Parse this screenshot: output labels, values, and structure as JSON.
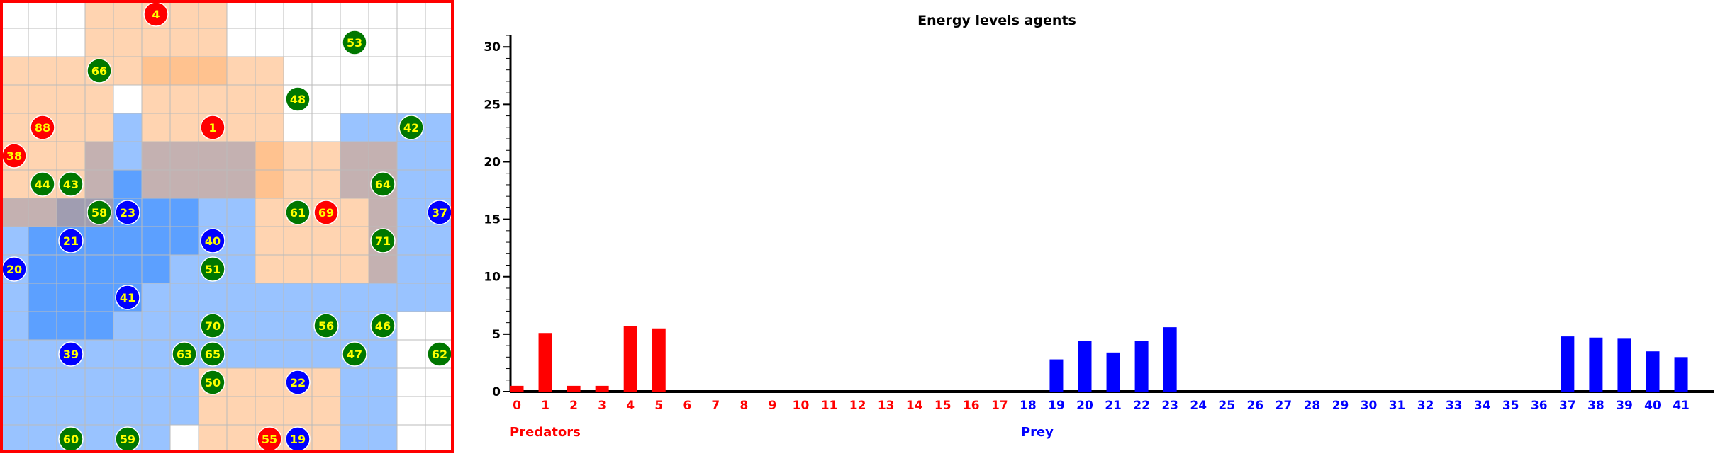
{
  "grid": {
    "rows": 16,
    "cols": 16,
    "red_territory_cells": [
      [
        0,
        3
      ],
      [
        0,
        4
      ],
      [
        0,
        5
      ],
      [
        0,
        6
      ],
      [
        0,
        7
      ],
      [
        1,
        3
      ],
      [
        1,
        4
      ],
      [
        1,
        5
      ],
      [
        1,
        6
      ],
      [
        1,
        7
      ],
      [
        2,
        0
      ],
      [
        2,
        1
      ],
      [
        2,
        2
      ],
      [
        2,
        3
      ],
      [
        2,
        4
      ],
      [
        2,
        5
      ],
      [
        2,
        6
      ],
      [
        2,
        7
      ],
      [
        2,
        8
      ],
      [
        2,
        9
      ],
      [
        3,
        0
      ],
      [
        3,
        1
      ],
      [
        3,
        2
      ],
      [
        3,
        3
      ],
      [
        3,
        5
      ],
      [
        3,
        6
      ],
      [
        3,
        7
      ],
      [
        3,
        8
      ],
      [
        3,
        9
      ],
      [
        4,
        0
      ],
      [
        4,
        1
      ],
      [
        4,
        2
      ],
      [
        4,
        3
      ],
      [
        4,
        5
      ],
      [
        4,
        6
      ],
      [
        4,
        7
      ],
      [
        4,
        8
      ],
      [
        4,
        9
      ],
      [
        5,
        0
      ],
      [
        5,
        1
      ],
      [
        5,
        2
      ],
      [
        5,
        3
      ],
      [
        5,
        5
      ],
      [
        5,
        6
      ],
      [
        5,
        7
      ],
      [
        5,
        8
      ],
      [
        5,
        9
      ],
      [
        5,
        10
      ],
      [
        5,
        11
      ],
      [
        5,
        12
      ],
      [
        5,
        13
      ],
      [
        6,
        0
      ],
      [
        6,
        1
      ],
      [
        6,
        2
      ],
      [
        6,
        3
      ],
      [
        6,
        5
      ],
      [
        6,
        6
      ],
      [
        6,
        7
      ],
      [
        6,
        8
      ],
      [
        6,
        9
      ],
      [
        6,
        10
      ],
      [
        6,
        11
      ],
      [
        6,
        12
      ],
      [
        6,
        13
      ],
      [
        7,
        0
      ],
      [
        7,
        1
      ],
      [
        7,
        2
      ],
      [
        7,
        3
      ],
      [
        7,
        9
      ],
      [
        7,
        10
      ],
      [
        7,
        11
      ],
      [
        7,
        12
      ],
      [
        7,
        13
      ],
      [
        8,
        9
      ],
      [
        8,
        10
      ],
      [
        8,
        11
      ],
      [
        8,
        12
      ],
      [
        8,
        13
      ],
      [
        9,
        9
      ],
      [
        9,
        10
      ],
      [
        9,
        11
      ],
      [
        9,
        12
      ],
      [
        9,
        13
      ],
      [
        13,
        7
      ],
      [
        13,
        8
      ],
      [
        13,
        9
      ],
      [
        13,
        10
      ],
      [
        13,
        11
      ],
      [
        14,
        7
      ],
      [
        14,
        8
      ],
      [
        14,
        9
      ],
      [
        14,
        10
      ],
      [
        14,
        11
      ],
      [
        15,
        7
      ],
      [
        15,
        8
      ],
      [
        15,
        9
      ],
      [
        15,
        10
      ],
      [
        15,
        11
      ]
    ],
    "red_strong_cells": [
      [
        2,
        5
      ],
      [
        2,
        6
      ],
      [
        2,
        7
      ],
      [
        5,
        9
      ],
      [
        6,
        9
      ]
    ],
    "blue_territory_cells": [
      [
        4,
        4
      ],
      [
        4,
        12
      ],
      [
        4,
        13
      ],
      [
        4,
        14
      ],
      [
        4,
        15
      ],
      [
        5,
        3
      ],
      [
        5,
        4
      ],
      [
        5,
        5
      ],
      [
        5,
        6
      ],
      [
        5,
        7
      ],
      [
        5,
        8
      ],
      [
        5,
        12
      ],
      [
        5,
        13
      ],
      [
        5,
        14
      ],
      [
        5,
        15
      ],
      [
        6,
        3
      ],
      [
        6,
        4
      ],
      [
        6,
        5
      ],
      [
        6,
        6
      ],
      [
        6,
        7
      ],
      [
        6,
        8
      ],
      [
        6,
        12
      ],
      [
        6,
        13
      ],
      [
        6,
        14
      ],
      [
        6,
        15
      ],
      [
        7,
        0
      ],
      [
        7,
        1
      ],
      [
        7,
        2
      ],
      [
        7,
        3
      ],
      [
        7,
        4
      ],
      [
        7,
        5
      ],
      [
        7,
        6
      ],
      [
        7,
        7
      ],
      [
        7,
        8
      ],
      [
        7,
        13
      ],
      [
        7,
        14
      ],
      [
        7,
        15
      ],
      [
        8,
        0
      ],
      [
        8,
        1
      ],
      [
        8,
        2
      ],
      [
        8,
        3
      ],
      [
        8,
        4
      ],
      [
        8,
        5
      ],
      [
        8,
        6
      ],
      [
        8,
        7
      ],
      [
        8,
        8
      ],
      [
        8,
        13
      ],
      [
        8,
        14
      ],
      [
        8,
        15
      ],
      [
        9,
        0
      ],
      [
        9,
        1
      ],
      [
        9,
        2
      ],
      [
        9,
        3
      ],
      [
        9,
        4
      ],
      [
        9,
        5
      ],
      [
        9,
        6
      ],
      [
        9,
        7
      ],
      [
        9,
        8
      ],
      [
        9,
        13
      ],
      [
        9,
        14
      ],
      [
        9,
        15
      ],
      [
        10,
        0
      ],
      [
        10,
        1
      ],
      [
        10,
        2
      ],
      [
        10,
        3
      ],
      [
        10,
        4
      ],
      [
        10,
        5
      ],
      [
        10,
        6
      ],
      [
        10,
        7
      ],
      [
        10,
        8
      ],
      [
        10,
        9
      ],
      [
        10,
        10
      ],
      [
        10,
        11
      ],
      [
        10,
        12
      ],
      [
        10,
        13
      ],
      [
        10,
        14
      ],
      [
        10,
        15
      ],
      [
        11,
        0
      ],
      [
        11,
        1
      ],
      [
        11,
        2
      ],
      [
        11,
        3
      ],
      [
        11,
        4
      ],
      [
        11,
        5
      ],
      [
        11,
        6
      ],
      [
        11,
        7
      ],
      [
        11,
        8
      ],
      [
        11,
        9
      ],
      [
        11,
        10
      ],
      [
        11,
        11
      ],
      [
        11,
        12
      ],
      [
        11,
        13
      ],
      [
        12,
        0
      ],
      [
        12,
        1
      ],
      [
        12,
        2
      ],
      [
        12,
        3
      ],
      [
        12,
        4
      ],
      [
        12,
        5
      ],
      [
        12,
        6
      ],
      [
        12,
        7
      ],
      [
        12,
        8
      ],
      [
        12,
        9
      ],
      [
        12,
        10
      ],
      [
        12,
        11
      ],
      [
        12,
        12
      ],
      [
        12,
        13
      ],
      [
        13,
        0
      ],
      [
        13,
        1
      ],
      [
        13,
        2
      ],
      [
        13,
        3
      ],
      [
        13,
        4
      ],
      [
        13,
        5
      ],
      [
        13,
        6
      ],
      [
        13,
        12
      ],
      [
        13,
        13
      ],
      [
        14,
        0
      ],
      [
        14,
        1
      ],
      [
        14,
        2
      ],
      [
        14,
        3
      ],
      [
        14,
        4
      ],
      [
        14,
        5
      ],
      [
        14,
        6
      ],
      [
        14,
        12
      ],
      [
        14,
        13
      ],
      [
        15,
        0
      ],
      [
        15,
        1
      ],
      [
        15,
        2
      ],
      [
        15,
        3
      ],
      [
        15,
        4
      ],
      [
        15,
        5
      ],
      [
        15,
        12
      ],
      [
        15,
        13
      ]
    ],
    "blue_strong_cells": [
      [
        6,
        4
      ],
      [
        7,
        2
      ],
      [
        7,
        3
      ],
      [
        7,
        4
      ],
      [
        7,
        5
      ],
      [
        7,
        6
      ],
      [
        8,
        1
      ],
      [
        8,
        2
      ],
      [
        8,
        3
      ],
      [
        8,
        4
      ],
      [
        8,
        5
      ],
      [
        8,
        6
      ],
      [
        9,
        1
      ],
      [
        9,
        2
      ],
      [
        9,
        3
      ],
      [
        9,
        4
      ],
      [
        9,
        5
      ],
      [
        10,
        1
      ],
      [
        10,
        2
      ],
      [
        10,
        3
      ],
      [
        10,
        4
      ],
      [
        11,
        1
      ],
      [
        11,
        2
      ],
      [
        11,
        3
      ]
    ],
    "agents": [
      {
        "label": "4",
        "kind": "predator",
        "row": 0,
        "col": 5
      },
      {
        "label": "53",
        "kind": "plant",
        "row": 1,
        "col": 12
      },
      {
        "label": "66",
        "kind": "plant",
        "row": 2,
        "col": 3
      },
      {
        "label": "48",
        "kind": "plant",
        "row": 3,
        "col": 10
      },
      {
        "label": "88",
        "kind": "predator",
        "row": 4,
        "col": 1
      },
      {
        "label": "1",
        "kind": "predator",
        "row": 4,
        "col": 7
      },
      {
        "label": "42",
        "kind": "plant",
        "row": 4,
        "col": 14
      },
      {
        "label": "38",
        "kind": "predator",
        "row": 5,
        "col": 0
      },
      {
        "label": "44",
        "kind": "plant",
        "row": 6,
        "col": 1
      },
      {
        "label": "43",
        "kind": "plant",
        "row": 6,
        "col": 2
      },
      {
        "label": "64",
        "kind": "plant",
        "row": 6,
        "col": 13
      },
      {
        "label": "58",
        "kind": "plant",
        "row": 7,
        "col": 3
      },
      {
        "label": "23",
        "kind": "prey",
        "row": 7,
        "col": 4
      },
      {
        "label": "61",
        "kind": "plant",
        "row": 7,
        "col": 10
      },
      {
        "label": "69",
        "kind": "predator",
        "row": 7,
        "col": 11
      },
      {
        "label": "37",
        "kind": "prey",
        "row": 7,
        "col": 15
      },
      {
        "label": "21",
        "kind": "prey",
        "row": 8,
        "col": 2
      },
      {
        "label": "40",
        "kind": "prey",
        "row": 8,
        "col": 7
      },
      {
        "label": "71",
        "kind": "plant",
        "row": 8,
        "col": 13
      },
      {
        "label": "20",
        "kind": "prey",
        "row": 9,
        "col": 0
      },
      {
        "label": "51",
        "kind": "plant",
        "row": 9,
        "col": 7
      },
      {
        "label": "41",
        "kind": "prey",
        "row": 10,
        "col": 4
      },
      {
        "label": "70",
        "kind": "plant",
        "row": 11,
        "col": 7
      },
      {
        "label": "56",
        "kind": "plant",
        "row": 11,
        "col": 11
      },
      {
        "label": "46",
        "kind": "plant",
        "row": 11,
        "col": 13
      },
      {
        "label": "39",
        "kind": "prey",
        "row": 12,
        "col": 2
      },
      {
        "label": "63",
        "kind": "plant",
        "row": 12,
        "col": 6
      },
      {
        "label": "65",
        "kind": "plant",
        "row": 12,
        "col": 7
      },
      {
        "label": "47",
        "kind": "plant",
        "row": 12,
        "col": 12
      },
      {
        "label": "62",
        "kind": "plant",
        "row": 12,
        "col": 15
      },
      {
        "label": "50",
        "kind": "plant",
        "row": 13,
        "col": 7
      },
      {
        "label": "22",
        "kind": "prey",
        "row": 13,
        "col": 10
      },
      {
        "label": "60",
        "kind": "plant",
        "row": 15,
        "col": 2
      },
      {
        "label": "59",
        "kind": "plant",
        "row": 15,
        "col": 4
      },
      {
        "label": "55",
        "kind": "predator",
        "row": 15,
        "col": 9
      },
      {
        "label": "19",
        "kind": "prey",
        "row": 15,
        "col": 10
      }
    ]
  },
  "colors": {
    "predator": "#ff0000",
    "prey": "#0000ff",
    "plant": "#007700",
    "agent_label": "#ffff00",
    "grid_line": "#bbbbbb",
    "red_territory": "#ff9944",
    "blue_territory": "#3388ff",
    "frame": "#ff0000"
  },
  "chart_data": {
    "type": "bar",
    "title": "Energy levels agents",
    "categories": [
      "0",
      "1",
      "2",
      "3",
      "4",
      "5",
      "6",
      "7",
      "8",
      "9",
      "10",
      "11",
      "12",
      "13",
      "14",
      "15",
      "16",
      "17",
      "18",
      "19",
      "20",
      "21",
      "22",
      "23",
      "24",
      "25",
      "26",
      "27",
      "28",
      "29",
      "30",
      "31",
      "32",
      "33",
      "34",
      "35",
      "36",
      "37",
      "38",
      "39",
      "40",
      "41"
    ],
    "values": [
      0.5,
      5.1,
      0.5,
      0.5,
      5.7,
      5.5,
      0,
      0,
      0,
      0,
      0,
      0,
      0,
      0,
      0,
      0,
      0,
      0,
      0,
      2.8,
      4.4,
      3.4,
      4.4,
      5.6,
      0,
      0,
      0,
      0,
      0,
      0,
      0,
      0,
      0,
      0,
      0,
      0,
      0,
      4.8,
      4.7,
      4.6,
      3.5,
      3.0
    ],
    "series_colors": [
      "#ff0000",
      "#ff0000",
      "#ff0000",
      "#ff0000",
      "#ff0000",
      "#ff0000",
      "#ff0000",
      "#ff0000",
      "#ff0000",
      "#ff0000",
      "#ff0000",
      "#ff0000",
      "#ff0000",
      "#ff0000",
      "#ff0000",
      "#ff0000",
      "#ff0000",
      "#ff0000",
      "#0000ff",
      "#0000ff",
      "#0000ff",
      "#0000ff",
      "#0000ff",
      "#0000ff",
      "#0000ff",
      "#0000ff",
      "#0000ff",
      "#0000ff",
      "#0000ff",
      "#0000ff",
      "#0000ff",
      "#0000ff",
      "#0000ff",
      "#0000ff",
      "#0000ff",
      "#0000ff",
      "#0000ff",
      "#0000ff",
      "#0000ff",
      "#0000ff",
      "#0000ff",
      "#0000ff"
    ],
    "ylim": [
      0,
      31
    ],
    "yticks": [
      0,
      5,
      10,
      15,
      20,
      25,
      30
    ],
    "group_labels": [
      {
        "text": "Predators",
        "color": "#ff0000",
        "at_category": 0
      },
      {
        "text": "Prey",
        "color": "#0000ff",
        "at_category": 18
      }
    ],
    "grid": false
  }
}
